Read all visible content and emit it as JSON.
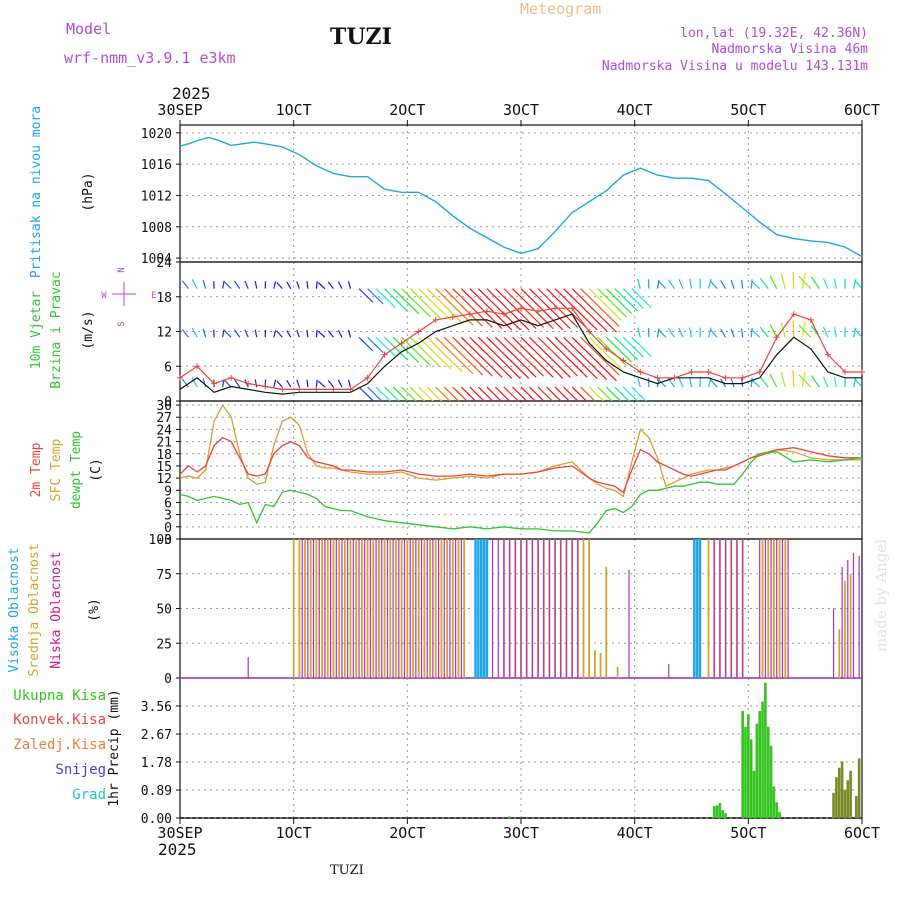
{
  "header": {
    "model_label": "Model",
    "model_name": "wrf-nmm_v3.9.1  e3km",
    "station": "TUZI",
    "meteogram": "Meteogram",
    "lonlat": "lon,lat (19.32E, 42.36N)",
    "elevation": "Nadmorska Visina 46m",
    "model_elevation": "Nadmorska Visina u modelu 143.131m",
    "year_top": "2025",
    "year_bottom": "2025",
    "footer_station": "TUZI",
    "watermark": "made by Angel"
  },
  "colors": {
    "pressure": "#1ea6e6",
    "temp2m": "#e8463c",
    "sfc": "#d6a12c",
    "dewpt": "#2ec72e",
    "high_cloud": "#1ea6e6",
    "mid_cloud": "#d6a12c",
    "low_cloud": "#b030c0",
    "total_precip": "#33c41e",
    "conv_precip": "#e8463c",
    "frozen_precip": "#e8823c",
    "snow": "#4040d8",
    "hail": "#20c8c0",
    "model": "#b04ad8",
    "meteo": "#e8c08a",
    "grid": "#888888"
  },
  "chart_data": [
    {
      "type": "line",
      "name": "pressure",
      "ylabel": "Pritisak na nivou mora",
      "unit": "(hPa)",
      "ylim": [
        1003.5,
        1021
      ],
      "yticks": [
        1004,
        1008,
        1012,
        1016,
        1020
      ],
      "x_hours": [
        0,
        3,
        6,
        10,
        14,
        18,
        22,
        26,
        30,
        36,
        42,
        48,
        54,
        60,
        66,
        72,
        78,
        84,
        90,
        96,
        102,
        108,
        114,
        120,
        126,
        132,
        138,
        144,
        150,
        156,
        162,
        168,
        174,
        180,
        186,
        192,
        198,
        204,
        210,
        216,
        222,
        228,
        234,
        240
      ],
      "values": [
        1018.3,
        1018.6,
        1019,
        1019.4,
        1019,
        1018.4,
        1018.6,
        1018.8,
        1018.6,
        1018.2,
        1017.2,
        1015.8,
        1014.8,
        1014.4,
        1014.4,
        1012.8,
        1012.4,
        1012.4,
        1011.2,
        1009.4,
        1007.8,
        1006.6,
        1005.4,
        1004.6,
        1005.2,
        1007.4,
        1009.8,
        1011.2,
        1012.6,
        1014.6,
        1015.5,
        1014.6,
        1014.2,
        1014.2,
        1013.9,
        1012.2,
        1010.4,
        1008.6,
        1007.0,
        1006.5,
        1006.2,
        1006.0,
        1005.4,
        1004.2
      ]
    },
    {
      "type": "line",
      "name": "wind",
      "ylabel": "10m Vjetar Brzina i Pravac",
      "unit": "(m/s)",
      "ylim": [
        0,
        24
      ],
      "yticks": [
        0,
        6,
        12,
        18,
        24
      ],
      "compass": {
        "north": "N",
        "south": "S",
        "east": "E",
        "west": "W"
      },
      "x_hours": [
        0,
        6,
        12,
        18,
        24,
        30,
        36,
        42,
        48,
        54,
        60,
        66,
        72,
        78,
        84,
        90,
        96,
        102,
        108,
        114,
        120,
        126,
        132,
        138,
        144,
        150,
        156,
        162,
        168,
        174,
        180,
        186,
        192,
        198,
        204,
        210,
        216,
        222,
        228,
        234,
        240
      ],
      "wind_speed": [
        2,
        4,
        1.5,
        2.5,
        2,
        1.5,
        1.2,
        1.5,
        1.5,
        1.5,
        1.5,
        3,
        6,
        8.5,
        10,
        12,
        13,
        14,
        14,
        13,
        14,
        13,
        14,
        15,
        10,
        7,
        5,
        4,
        3,
        4,
        4,
        4,
        3,
        3,
        4,
        8,
        11,
        9,
        5,
        4,
        4
      ],
      "gust": [
        4,
        6,
        3,
        4,
        3,
        2.5,
        2,
        2,
        2,
        2,
        2,
        4,
        8,
        10,
        12,
        14,
        14.5,
        15,
        15.5,
        15,
        16,
        15.5,
        16,
        16,
        12,
        9,
        7,
        5,
        4,
        4,
        5,
        5,
        4,
        4,
        5,
        11,
        15,
        14,
        8,
        5,
        5
      ],
      "barb_rows": [
        2.4,
        11.0,
        19.4
      ],
      "barb_x_hours": [
        0,
        3,
        6,
        9,
        12,
        15,
        18,
        21,
        24,
        27,
        30,
        33,
        36,
        39,
        42,
        45,
        48,
        51,
        54,
        57,
        60,
        63,
        66,
        69,
        72,
        75,
        78,
        81,
        84,
        87,
        90,
        93,
        96,
        99,
        102,
        105,
        108,
        111,
        114,
        117,
        120,
        123,
        126,
        129,
        132,
        135,
        138,
        141,
        144,
        147,
        150,
        153,
        156,
        159,
        162,
        165,
        168,
        171,
        174,
        177,
        180,
        183,
        186,
        189,
        192,
        195,
        198,
        201,
        204,
        207,
        210,
        213,
        216,
        219,
        222,
        225,
        228,
        231,
        234,
        237,
        240
      ]
    },
    {
      "type": "line",
      "name": "temperature",
      "labels": [
        "2m Temp",
        "SFC Temp",
        "dewpt Temp"
      ],
      "unit": "(C)",
      "ylim": [
        -3,
        31
      ],
      "yticks": [
        -3,
        0,
        3,
        6,
        9,
        12,
        15,
        18,
        21,
        24,
        27,
        30
      ],
      "x_hours": [
        0,
        3,
        6,
        9,
        12,
        15,
        18,
        21,
        24,
        27,
        30,
        33,
        36,
        39,
        42,
        45,
        48,
        51,
        54,
        57,
        60,
        66,
        72,
        78,
        84,
        90,
        96,
        102,
        108,
        114,
        120,
        126,
        132,
        138,
        144,
        147,
        150,
        153,
        156,
        159,
        162,
        165,
        168,
        171,
        174,
        177,
        180,
        183,
        186,
        189,
        192,
        195,
        198,
        201,
        204,
        210,
        216,
        222,
        228,
        234,
        240
      ],
      "temp2m": [
        13,
        15,
        13.5,
        15,
        20,
        22,
        21,
        17,
        13,
        12.5,
        13,
        18,
        20,
        21,
        20,
        17,
        16,
        15.5,
        15,
        14,
        14,
        13.5,
        13.5,
        14,
        13,
        12.5,
        12.5,
        13,
        12.5,
        13,
        13,
        13.5,
        14.5,
        15,
        12,
        11,
        10.5,
        10,
        8.5,
        14,
        19,
        18,
        16,
        15,
        14,
        13,
        12.5,
        13,
        13.5,
        14,
        14,
        15,
        16,
        17,
        17.5,
        19,
        19.5,
        18.5,
        17.5,
        17,
        17
      ],
      "sfc": [
        12,
        12.5,
        12,
        14,
        26,
        30,
        27,
        18,
        12,
        10.5,
        11,
        20,
        26,
        27,
        25,
        18,
        15,
        14.5,
        14.5,
        14,
        13.5,
        13,
        13,
        13.5,
        12,
        11.5,
        12,
        12.5,
        12,
        13,
        13,
        13.5,
        15,
        16,
        12,
        10.5,
        9.5,
        9,
        7.5,
        16,
        24,
        22,
        17,
        10,
        11,
        12,
        13,
        13.5,
        14,
        14,
        14.5,
        15,
        16,
        17,
        18,
        19,
        18.5,
        17,
        16.5,
        16.5,
        16.5
      ],
      "dewpt": [
        8,
        7.5,
        6.5,
        7,
        7.5,
        7,
        6.5,
        5.5,
        6,
        1,
        5.5,
        5,
        8.5,
        9,
        8.5,
        8,
        7,
        5,
        4.5,
        4,
        4,
        2.5,
        1.5,
        1,
        0.5,
        0,
        -0.5,
        0,
        -0.5,
        0,
        -0.5,
        -0.5,
        -1,
        -1,
        -1.5,
        1,
        4,
        4.5,
        3.5,
        5,
        8,
        9,
        9,
        9.5,
        10,
        10,
        10.5,
        11,
        11,
        10.5,
        10.5,
        10.5,
        13,
        16,
        18,
        18.5,
        16,
        16.5,
        16,
        16.5,
        17
      ]
    },
    {
      "type": "bar",
      "name": "clouds",
      "labels": [
        "Visoka Oblacnost",
        "Srednja Oblacnost",
        "Niska Oblacnost"
      ],
      "unit": "(%)",
      "ylim": [
        0,
        100
      ],
      "yticks": [
        0,
        25,
        50,
        75,
        100
      ],
      "x_start": 40,
      "x_end": 240,
      "high_hours": [
        104,
        105,
        106,
        107,
        108,
        181,
        182,
        183
      ],
      "mid_full_ranges": [
        [
          40,
          100
        ],
        [
          114,
          144
        ],
        [
          186,
          198
        ],
        [
          205,
          213
        ]
      ],
      "low_full_ranges": [
        [
          42,
          100
        ],
        [
          103,
          140
        ],
        [
          187,
          198
        ],
        [
          203,
          214
        ]
      ],
      "sparse_mid": [
        [
          146,
          20
        ],
        [
          148,
          18
        ],
        [
          150,
          80
        ],
        [
          154,
          8
        ],
        [
          232,
          35
        ],
        [
          234,
          70
        ],
        [
          236,
          75
        ]
      ],
      "sparse_low": [
        [
          24,
          15
        ],
        [
          158,
          78
        ],
        [
          172,
          10
        ],
        [
          230,
          50
        ],
        [
          233,
          80
        ],
        [
          235,
          85
        ],
        [
          237,
          90
        ],
        [
          239,
          88
        ]
      ]
    },
    {
      "type": "bar",
      "name": "precipitation",
      "labels": [
        "Ukupna Kisa",
        "Konvek.Kisa",
        "Zaledj.Kisa",
        "Snijeg",
        "Grad"
      ],
      "unit": "1hr Precip (mm)",
      "ylim": [
        0,
        4.45
      ],
      "yticks": [
        0,
        0.89,
        1.78,
        2.67,
        3.56
      ],
      "bars": [
        [
          116,
          0.05
        ],
        [
          188,
          0.38
        ],
        [
          189,
          0.4
        ],
        [
          190,
          0.48
        ],
        [
          191,
          0.25
        ],
        [
          192,
          0.15
        ],
        [
          198,
          3.4
        ],
        [
          199,
          2.9
        ],
        [
          200,
          3.3
        ],
        [
          201,
          2.5
        ],
        [
          202,
          1.5
        ],
        [
          203,
          3.0
        ],
        [
          204,
          3.4
        ],
        [
          205,
          3.7
        ],
        [
          206,
          4.3
        ],
        [
          207,
          2.9
        ],
        [
          208,
          2.3
        ],
        [
          209,
          1.0
        ],
        [
          210,
          0.5
        ],
        [
          211,
          0.2
        ]
      ],
      "bars_olive": [
        [
          230,
          0.8
        ],
        [
          231,
          1.3
        ],
        [
          232,
          1.6
        ],
        [
          233,
          1.8
        ],
        [
          234,
          0.9
        ],
        [
          235,
          1.2
        ],
        [
          236,
          1.5
        ],
        [
          238,
          0.7
        ],
        [
          239,
          1.9
        ]
      ]
    }
  ],
  "x_axis": {
    "ticks": [
      "30SEP",
      "1OCT",
      "2OCT",
      "3OCT",
      "4OCT",
      "5OCT",
      "6OCT"
    ],
    "hours": [
      0,
      40,
      80,
      120,
      160,
      200,
      240
    ]
  }
}
